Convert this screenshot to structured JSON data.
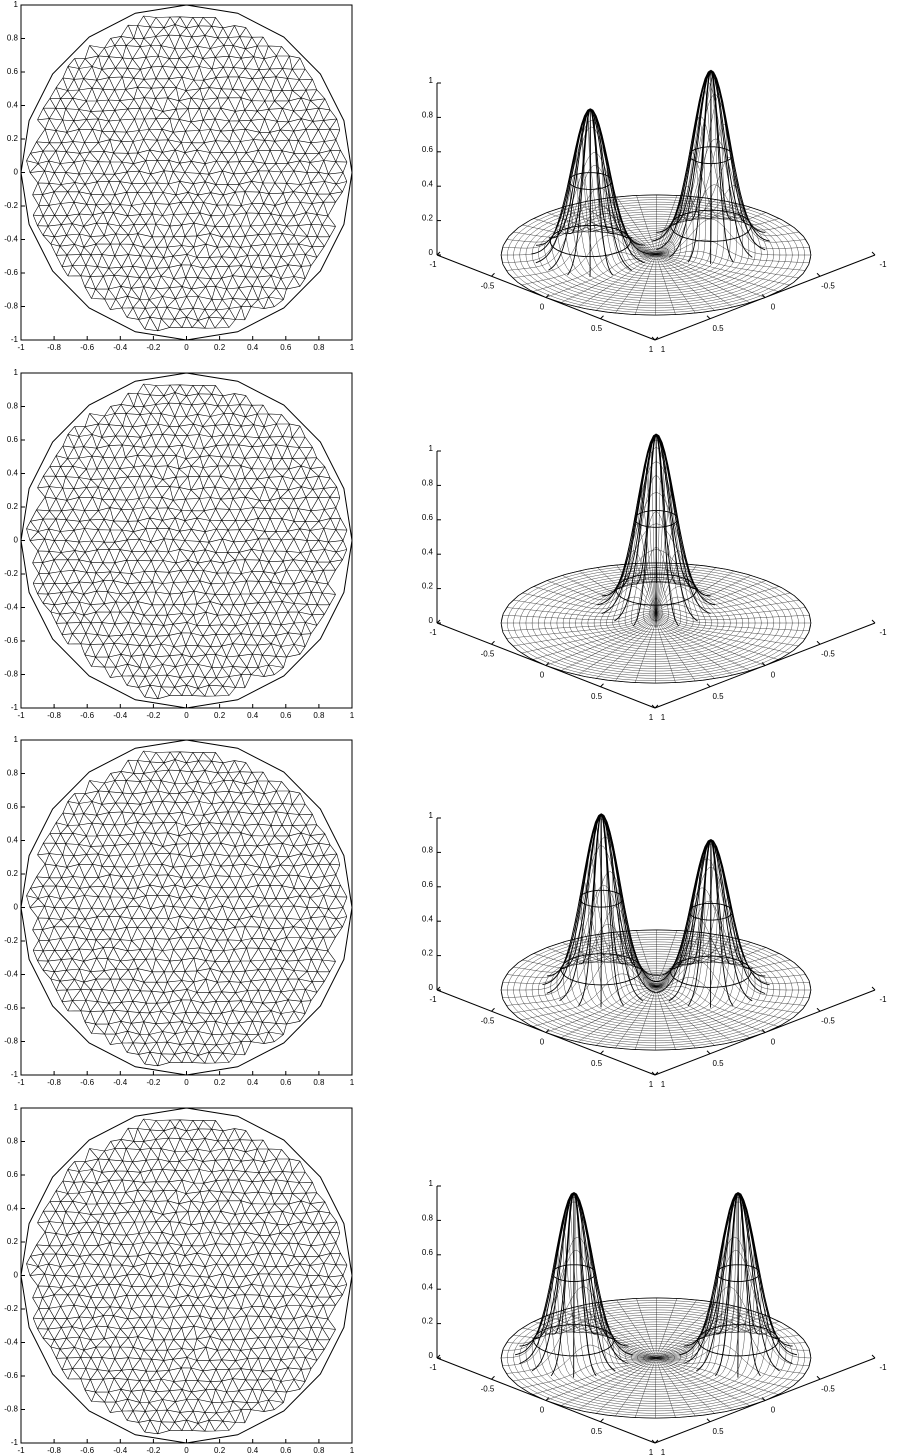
{
  "chart_data": [
    {
      "type": "mesh",
      "xlim": [
        -1,
        1
      ],
      "ylim": [
        -1,
        1
      ],
      "xticks": [
        -1,
        -0.8,
        -0.6,
        -0.4,
        -0.2,
        0,
        0.2,
        0.4,
        0.6,
        0.8,
        1
      ],
      "yticks": [
        -1,
        -0.8,
        -0.6,
        -0.4,
        -0.2,
        0,
        0.2,
        0.4,
        0.6,
        0.8,
        1
      ]
    },
    {
      "type": "surface",
      "xlim": [
        -1,
        1
      ],
      "ylim": [
        -1,
        1
      ],
      "zlim": [
        0,
        1
      ],
      "xticks": [
        -1,
        -0.5,
        0,
        0.5,
        1
      ],
      "yticks": [
        -1,
        -0.5,
        0,
        0.5,
        1
      ],
      "zticks": [
        0,
        0.2,
        0.4,
        0.6,
        0.8,
        1
      ],
      "peaks": [
        {
          "x": -0.3,
          "y": 0.3,
          "height": 0.85
        },
        {
          "x": 0.1,
          "y": -0.4,
          "height": 1
        }
      ]
    },
    {
      "type": "mesh",
      "xlim": [
        -1,
        1
      ],
      "ylim": [
        -1,
        1
      ],
      "xticks": [
        -1,
        -0.8,
        -0.6,
        -0.4,
        -0.2,
        0,
        0.2,
        0.4,
        0.6,
        0.8,
        1
      ],
      "yticks": [
        -1,
        -0.8,
        -0.6,
        -0.4,
        -0.2,
        0,
        0.2,
        0.4,
        0.6,
        0.8,
        1
      ]
    },
    {
      "type": "surface",
      "xlim": [
        -1,
        1
      ],
      "ylim": [
        -1,
        1
      ],
      "zlim": [
        0,
        1
      ],
      "xticks": [
        -1,
        -0.5,
        0,
        0.5,
        1
      ],
      "yticks": [
        -1,
        -0.5,
        0,
        0.5,
        1
      ],
      "zticks": [
        0,
        0.2,
        0.4,
        0.6,
        0.8,
        1
      ],
      "peaks": [
        {
          "x": -0.2,
          "y": -0.2,
          "height": 1
        }
      ]
    },
    {
      "type": "mesh",
      "xlim": [
        -1,
        1
      ],
      "ylim": [
        -1,
        1
      ],
      "xticks": [
        -1,
        -0.8,
        -0.6,
        -0.4,
        -0.2,
        0,
        0.2,
        0.4,
        0.6,
        0.8,
        1
      ],
      "yticks": [
        -1,
        -0.8,
        -0.6,
        -0.4,
        -0.2,
        0,
        0.2,
        0.4,
        0.6,
        0.8,
        1
      ]
    },
    {
      "type": "surface",
      "xlim": [
        -1,
        1
      ],
      "ylim": [
        -1,
        1
      ],
      "zlim": [
        0,
        1
      ],
      "xticks": [
        -1,
        -0.5,
        0,
        0.5,
        1
      ],
      "yticks": [
        -1,
        -0.5,
        0,
        0.5,
        1
      ],
      "zticks": [
        0,
        0.2,
        0.4,
        0.6,
        0.8,
        1
      ],
      "peaks": [
        {
          "x": -0.3,
          "y": 0.2,
          "height": 1
        },
        {
          "x": 0.2,
          "y": -0.3,
          "height": 0.85
        }
      ]
    },
    {
      "type": "mesh",
      "xlim": [
        -1,
        1
      ],
      "ylim": [
        -1,
        1
      ],
      "xticks": [
        -1,
        -0.8,
        -0.6,
        -0.4,
        -0.2,
        0,
        0.2,
        0.4,
        0.6,
        0.8,
        1
      ],
      "yticks": [
        -1,
        -0.8,
        -0.6,
        -0.4,
        -0.2,
        0,
        0.2,
        0.4,
        0.6,
        0.8,
        1
      ]
    },
    {
      "type": "surface",
      "xlim": [
        -1,
        1
      ],
      "ylim": [
        -1,
        1
      ],
      "zlim": [
        0,
        1
      ],
      "xticks": [
        -1,
        -0.5,
        0,
        0.5,
        1
      ],
      "yticks": [
        -1,
        -0.5,
        0,
        0.5,
        1
      ],
      "zticks": [
        0,
        0.2,
        0.4,
        0.6,
        0.8,
        1
      ],
      "peaks": [
        {
          "x": -0.4,
          "y": 0.35,
          "height": 0.95
        },
        {
          "x": 0.35,
          "y": -0.4,
          "height": 0.95
        }
      ]
    }
  ]
}
